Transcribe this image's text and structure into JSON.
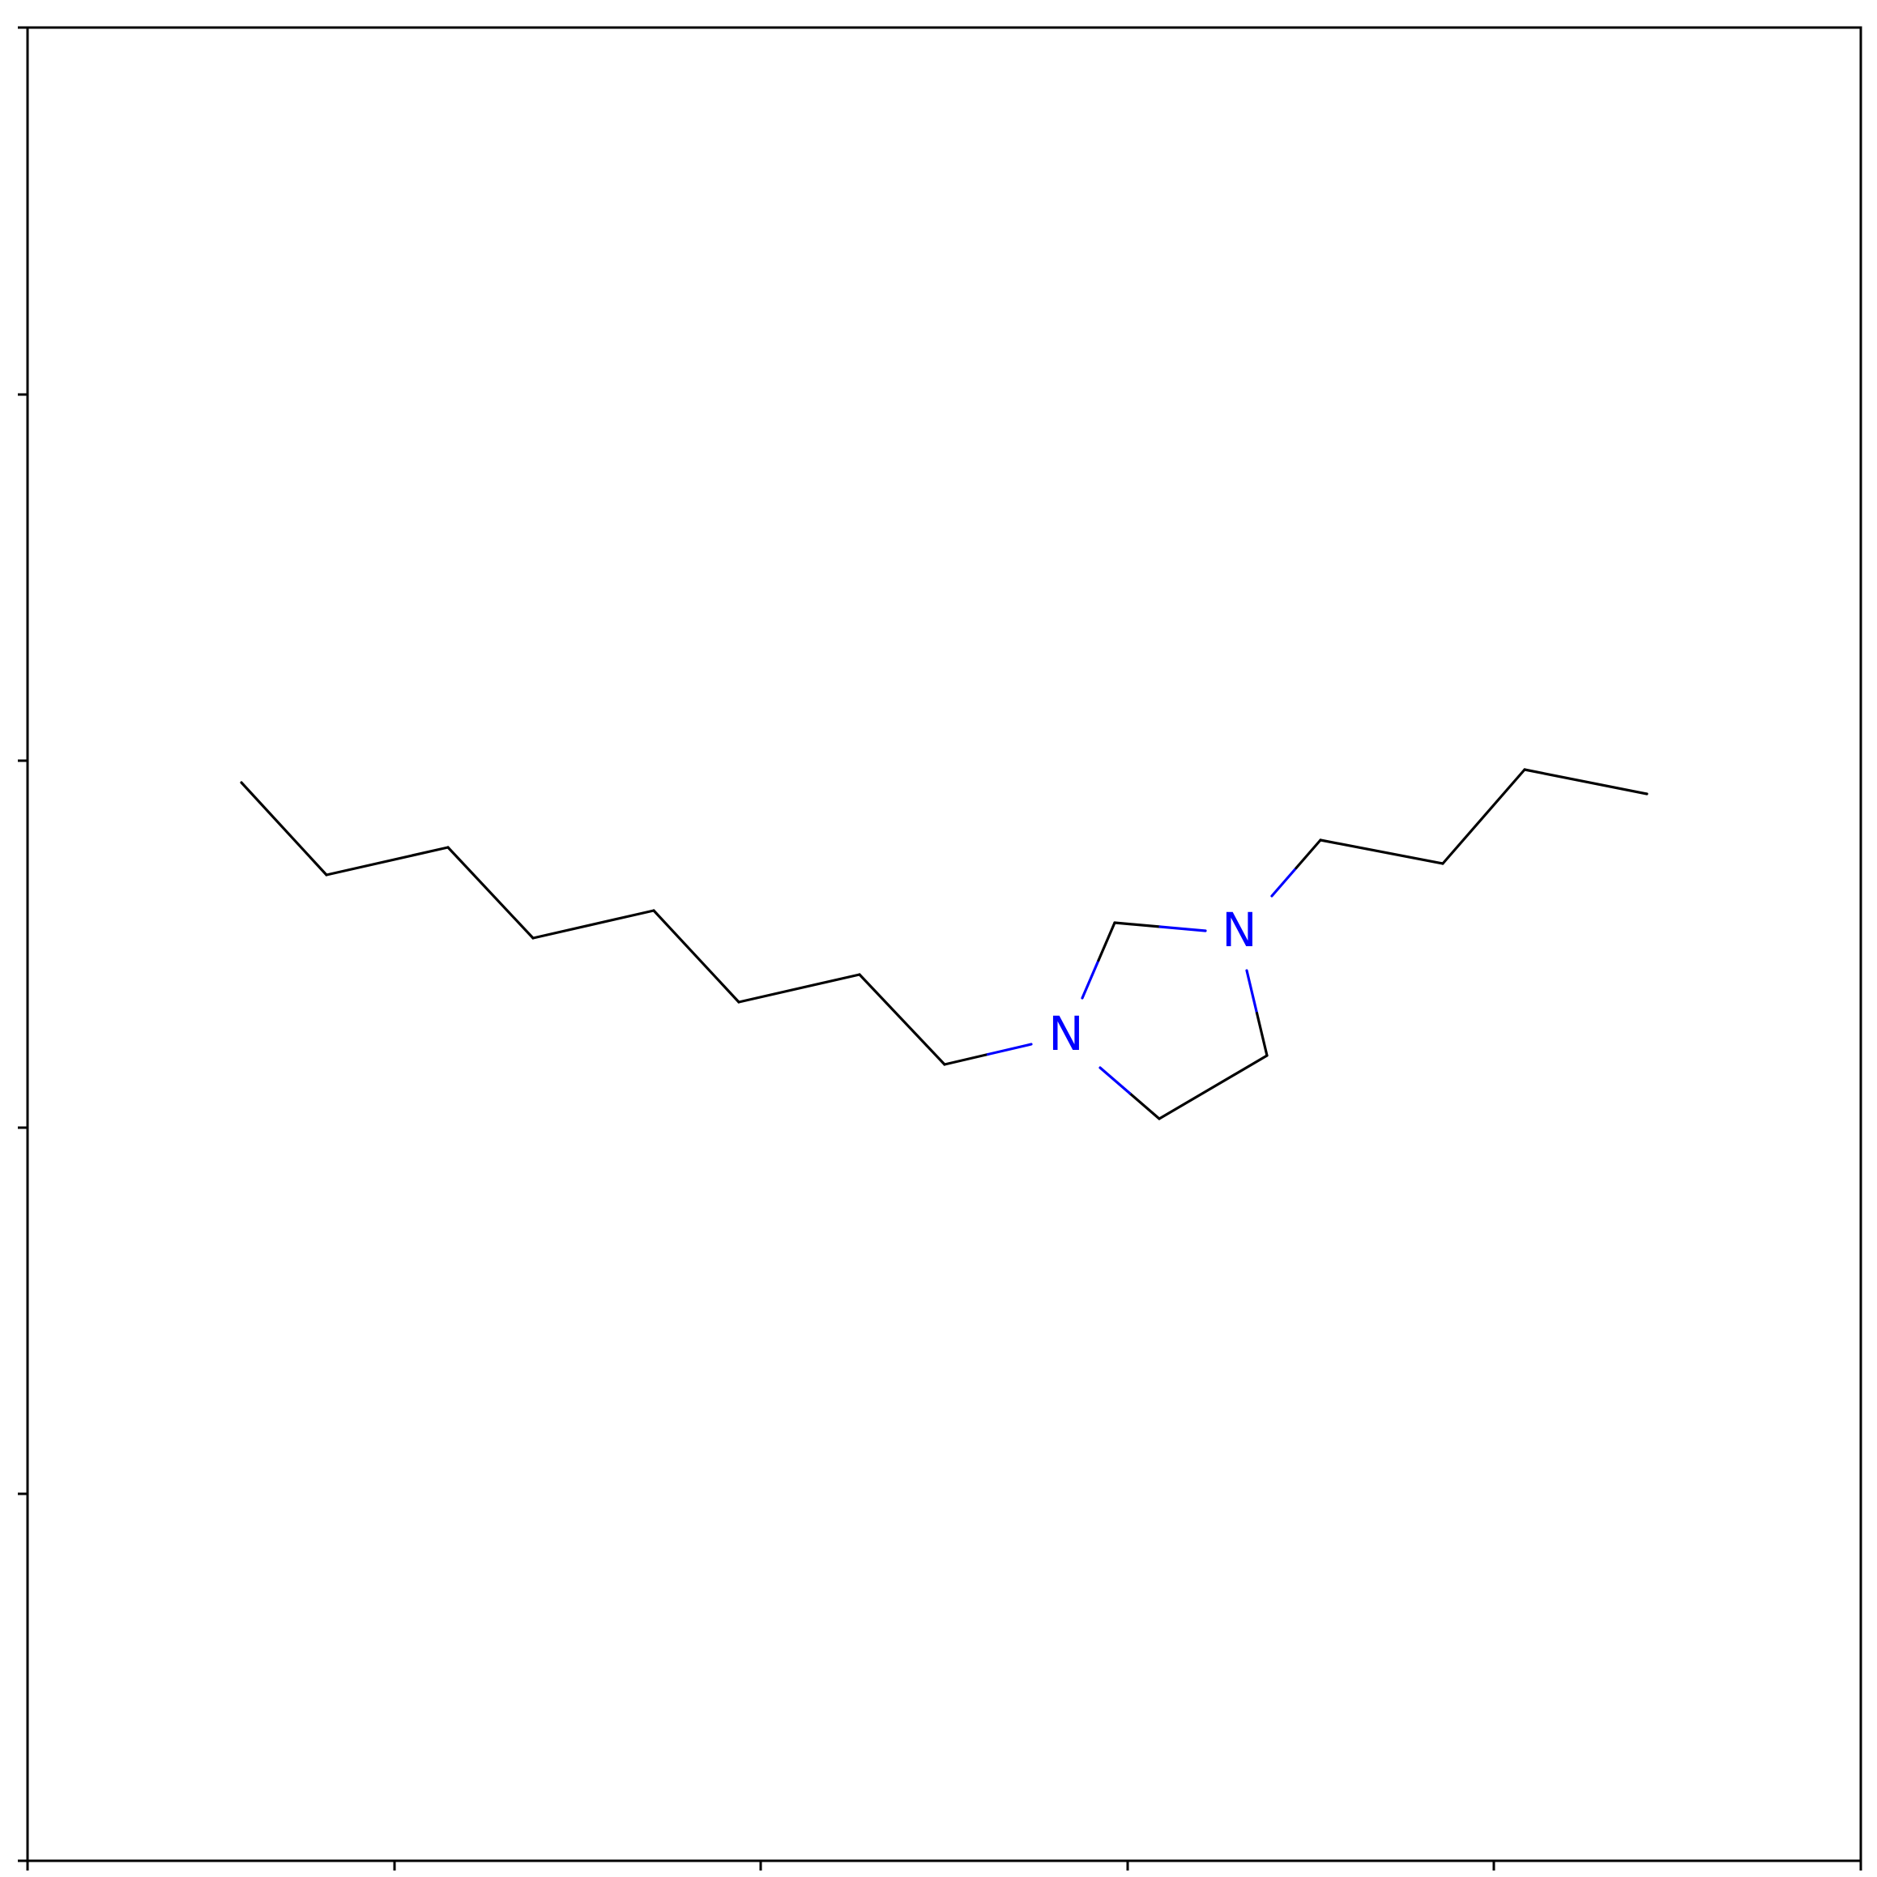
{
  "molecule": {
    "colors": {
      "carbon": "#000000",
      "nitrogen": "#0000ff"
    },
    "atoms": [
      {
        "id": "N1",
        "element": "N",
        "label": "N"
      },
      {
        "id": "N2",
        "element": "N",
        "label": "N"
      }
    ],
    "bonds": [
      {
        "name": "bond-hexyl-1"
      },
      {
        "name": "bond-hexyl-2"
      },
      {
        "name": "bond-hexyl-3"
      },
      {
        "name": "bond-hexyl-4"
      },
      {
        "name": "bond-hexyl-5"
      },
      {
        "name": "bond-hexyl-6"
      },
      {
        "name": "bond-hexyl-7"
      },
      {
        "name": "bond-hexyl-8"
      },
      {
        "name": "bond-hexyl-n1"
      },
      {
        "name": "bond-ring-n1-c2"
      },
      {
        "name": "bond-ring-c2-n3"
      },
      {
        "name": "bond-ring-n3-c4"
      },
      {
        "name": "bond-ring-c4-c5"
      },
      {
        "name": "bond-ring-c5-n1"
      },
      {
        "name": "bond-butyl-n3"
      },
      {
        "name": "bond-butyl-1"
      },
      {
        "name": "bond-butyl-2"
      },
      {
        "name": "bond-butyl-3"
      }
    ]
  }
}
